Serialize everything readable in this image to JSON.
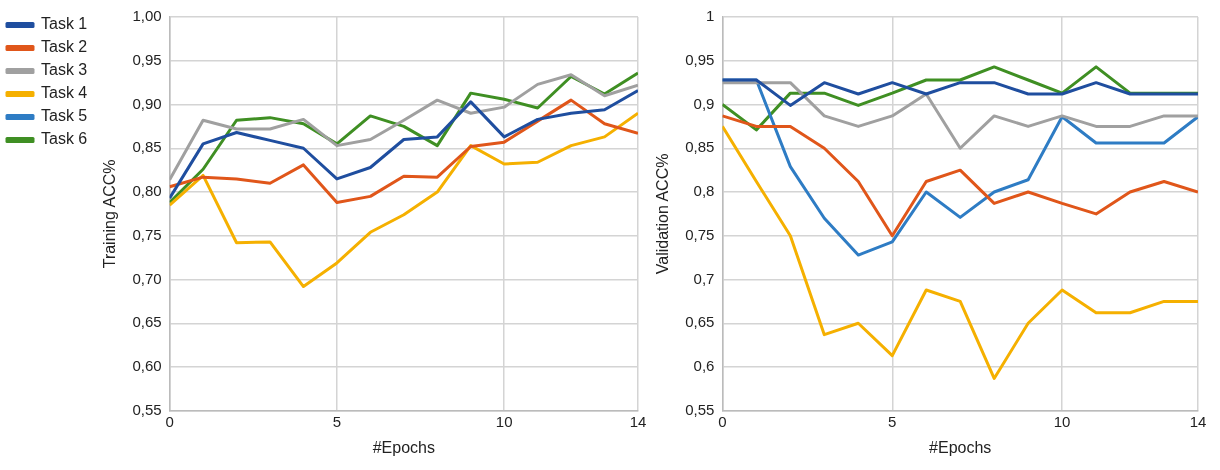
{
  "chart_data": [
    {
      "type": "line",
      "xlabel": "#Epochs",
      "ylabel": "Training ACC%",
      "x": [
        0,
        1,
        2,
        3,
        4,
        5,
        6,
        7,
        8,
        9,
        10,
        11,
        12,
        13,
        14
      ],
      "xlim": [
        0,
        14
      ],
      "xticks": [
        0,
        5,
        10,
        14
      ],
      "ylim": [
        0.55,
        1.0
      ],
      "yticks": [
        {
          "value": 0.55,
          "label": "0,55"
        },
        {
          "value": 0.6,
          "label": "0,60"
        },
        {
          "value": 0.65,
          "label": "0,65"
        },
        {
          "value": 0.7,
          "label": "0,70"
        },
        {
          "value": 0.75,
          "label": "0,75"
        },
        {
          "value": 0.8,
          "label": "0,80"
        },
        {
          "value": 0.85,
          "label": "0,85"
        },
        {
          "value": 0.9,
          "label": "0,90"
        },
        {
          "value": 0.95,
          "label": "0,95"
        },
        {
          "value": 1.0,
          "label": "1,00"
        }
      ],
      "grid": true,
      "legend": "left",
      "marker": "none",
      "series": [
        {
          "name": "Task 1",
          "color": "#1f4e9f",
          "values": [
            0.793,
            0.855,
            0.868,
            0.859,
            0.85,
            0.815,
            0.828,
            0.86,
            0.863,
            0.903,
            0.863,
            0.883,
            0.89,
            0.894,
            0.916
          ]
        },
        {
          "name": "Task 2",
          "color": "#e0561a",
          "values": [
            0.806,
            0.817,
            0.815,
            0.81,
            0.831,
            0.788,
            0.795,
            0.818,
            0.817,
            0.852,
            0.857,
            0.881,
            0.905,
            0.878,
            0.867
          ]
        },
        {
          "name": "Task 3",
          "color": "#a0a0a0",
          "values": [
            0.814,
            0.882,
            0.872,
            0.872,
            0.883,
            0.853,
            0.86,
            0.882,
            0.905,
            0.89,
            0.897,
            0.923,
            0.934,
            0.91,
            0.922
          ]
        },
        {
          "name": "Task 4",
          "color": "#f5b000",
          "values": [
            0.785,
            0.819,
            0.742,
            0.743,
            0.692,
            0.719,
            0.754,
            0.774,
            0.8,
            0.853,
            0.832,
            0.834,
            0.853,
            0.863,
            0.89
          ]
        },
        {
          "name": "Task 5",
          "color": "#2e7cc4",
          "values": [
            null,
            null,
            null,
            null,
            null,
            null,
            null,
            null,
            null,
            null,
            null,
            null,
            null,
            null,
            null
          ]
        },
        {
          "name": "Task 6",
          "color": "#3f8f23",
          "values": [
            0.788,
            0.826,
            0.882,
            0.885,
            0.878,
            0.855,
            0.887,
            0.875,
            0.853,
            0.913,
            0.906,
            0.896,
            0.932,
            0.912,
            0.936
          ]
        }
      ]
    },
    {
      "type": "line",
      "xlabel": "#Epochs",
      "ylabel": "Validation ACC%",
      "x": [
        0,
        1,
        2,
        3,
        4,
        5,
        6,
        7,
        8,
        9,
        10,
        11,
        12,
        13,
        14
      ],
      "xlim": [
        0,
        14
      ],
      "xticks": [
        0,
        5,
        10,
        14
      ],
      "ylim": [
        0.55,
        1
      ],
      "yticks": [
        {
          "value": 0.55,
          "label": "0,55"
        },
        {
          "value": 0.6,
          "label": "0,6"
        },
        {
          "value": 0.65,
          "label": "0,65"
        },
        {
          "value": 0.7,
          "label": "0,7"
        },
        {
          "value": 0.75,
          "label": "0,75"
        },
        {
          "value": 0.8,
          "label": "0,8"
        },
        {
          "value": 0.85,
          "label": "0,85"
        },
        {
          "value": 0.9,
          "label": "0,9"
        },
        {
          "value": 0.95,
          "label": "0,95"
        },
        1
      ],
      "grid": true,
      "marker": "none",
      "series": [
        {
          "color": "#1f4e9f",
          "values": [
            0.928,
            0.928,
            0.899,
            0.925,
            0.912,
            0.925,
            0.912,
            0.925,
            0.925,
            0.912,
            0.912,
            0.925,
            0.912,
            0.912,
            0.912
          ]
        },
        {
          "color": "#e0561a",
          "values": [
            0.887,
            0.875,
            0.875,
            0.85,
            0.812,
            0.75,
            0.812,
            0.825,
            0.787,
            0.8,
            0.787,
            0.775,
            0.8,
            0.812,
            0.8
          ]
        },
        {
          "color": "#a0a0a0",
          "values": [
            0.925,
            0.925,
            0.925,
            0.887,
            0.875,
            0.887,
            0.912,
            0.85,
            0.887,
            0.875,
            0.887,
            0.875,
            0.875,
            0.887,
            0.887
          ]
        },
        {
          "color": "#f5b000",
          "values": [
            0.875,
            0.812,
            0.75,
            0.637,
            0.65,
            0.613,
            0.688,
            0.675,
            0.587,
            0.65,
            0.688,
            0.662,
            0.662,
            0.675,
            0.675
          ]
        },
        {
          "color": "#2e7cc4",
          "values": [
            0.928,
            0.928,
            0.829,
            0.77,
            0.728,
            0.743,
            0.8,
            0.771,
            0.8,
            0.814,
            0.886,
            0.856,
            0.856,
            0.856,
            0.886
          ]
        },
        {
          "color": "#3f8f23",
          "values": [
            0.9,
            0.871,
            0.913,
            0.913,
            0.899,
            0.913,
            0.928,
            0.928,
            0.943,
            0.928,
            0.913,
            0.943,
            0.913,
            0.913,
            0.913
          ]
        }
      ]
    }
  ]
}
